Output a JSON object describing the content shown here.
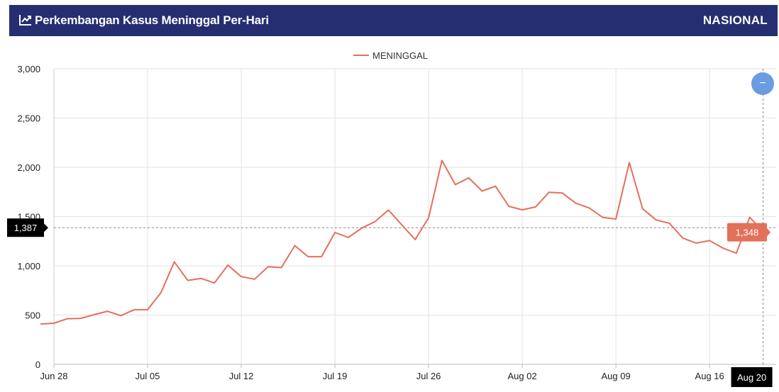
{
  "header": {
    "title": "Perkembangan Kasus Meninggal Per-Hari",
    "scope": "NASIONAL",
    "icon": "line-chart-icon"
  },
  "colors": {
    "header_bg": "#252e71",
    "series": "#e3705b",
    "zoom_button": "#6b9be0",
    "crosshair_label": "#000000"
  },
  "crosshair": {
    "y_label": "1,387",
    "x_label": "Aug 20",
    "value_label": "1,348"
  },
  "zoom_button": {
    "symbol": "−"
  },
  "chart_data": {
    "type": "line",
    "xlabel": "",
    "ylabel": "",
    "ylim": [
      0,
      3000
    ],
    "yticks": [
      "0",
      "500",
      "1,000",
      "1,500",
      "2,000",
      "2,500",
      "3,000"
    ],
    "xticks": [
      "Jun 28",
      "Jul 05",
      "Jul 12",
      "Jul 19",
      "Jul 26",
      "Aug 02",
      "Aug 09",
      "Aug 16",
      "Aug 20"
    ],
    "grid": true,
    "legend_position": "top-center",
    "x": [
      "Jun 27",
      "Jun 28",
      "Jun 29",
      "Jun 30",
      "Jul 01",
      "Jul 02",
      "Jul 03",
      "Jul 04",
      "Jul 05",
      "Jul 06",
      "Jul 07",
      "Jul 08",
      "Jul 09",
      "Jul 10",
      "Jul 11",
      "Jul 12",
      "Jul 13",
      "Jul 14",
      "Jul 15",
      "Jul 16",
      "Jul 17",
      "Jul 18",
      "Jul 19",
      "Jul 20",
      "Jul 21",
      "Jul 22",
      "Jul 23",
      "Jul 24",
      "Jul 25",
      "Jul 26",
      "Jul 27",
      "Jul 28",
      "Jul 29",
      "Jul 30",
      "Jul 31",
      "Aug 01",
      "Aug 02",
      "Aug 03",
      "Aug 04",
      "Aug 05",
      "Aug 06",
      "Aug 07",
      "Aug 08",
      "Aug 09",
      "Aug 10",
      "Aug 11",
      "Aug 12",
      "Aug 13",
      "Aug 14",
      "Aug 15",
      "Aug 16",
      "Aug 17",
      "Aug 18",
      "Aug 19",
      "Aug 20"
    ],
    "series": [
      {
        "name": "MENINGGAL",
        "values": [
          409,
          417,
          463,
          467,
          504,
          539,
          494,
          555,
          555,
          728,
          1040,
          852,
          872,
          826,
          1007,
          891,
          865,
          991,
          982,
          1205,
          1093,
          1093,
          1338,
          1288,
          1383,
          1449,
          1566,
          1415,
          1266,
          1487,
          2069,
          1824,
          1893,
          1759,
          1808,
          1604,
          1568,
          1598,
          1747,
          1739,
          1635,
          1588,
          1492,
          1475,
          2048,
          1579,
          1466,
          1432,
          1281,
          1230,
          1256,
          1180,
          1128,
          1492,
          1348
        ]
      }
    ]
  }
}
